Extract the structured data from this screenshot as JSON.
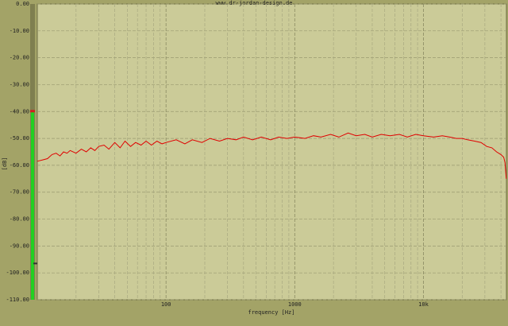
{
  "chart_data": {
    "type": "line",
    "title": "www.dr-jordan-design.de",
    "x_label": "frequency [Hz]",
    "y_label": "[dB]",
    "log_x": true,
    "grid": true,
    "xlim": [
      10,
      44100
    ],
    "ylim": [
      -110,
      0
    ],
    "xticks": [
      100,
      1000,
      {
        "value": 10000,
        "label": "10k"
      }
    ],
    "x_minor_grid": [
      20,
      30,
      40,
      50,
      60,
      70,
      80,
      90,
      200,
      300,
      400,
      500,
      600,
      700,
      800,
      900,
      2000,
      3000,
      4000,
      5000,
      6000,
      7000,
      8000,
      9000,
      20000,
      30000,
      40000
    ],
    "yticks": [
      {
        "value": 0,
        "label": "0.00"
      },
      {
        "value": -10,
        "label": "-10.00"
      },
      {
        "value": -20,
        "label": "-20.00"
      },
      {
        "value": -30,
        "label": "-30.00"
      },
      {
        "value": -40,
        "label": "-40.00"
      },
      {
        "value": -50,
        "label": "-50.00"
      },
      {
        "value": -60,
        "label": "-60.00"
      },
      {
        "value": -70,
        "label": "-70.00"
      },
      {
        "value": -80,
        "label": "-80.00"
      },
      {
        "value": -90,
        "label": "-90.00"
      },
      {
        "value": -100,
        "label": "-100.00"
      },
      {
        "value": -110,
        "label": "-110.00"
      }
    ],
    "level_meter": {
      "value": -40,
      "peak": -96.5,
      "color": "#22d022"
    },
    "x": [
      10,
      11,
      12,
      13,
      14,
      15,
      16,
      17,
      18,
      20,
      22,
      24,
      26,
      28,
      30,
      33,
      36,
      40,
      44,
      48,
      53,
      58,
      64,
      70,
      77,
      85,
      93,
      100,
      120,
      140,
      160,
      190,
      220,
      260,
      300,
      350,
      400,
      470,
      550,
      650,
      750,
      870,
      1000,
      1200,
      1400,
      1600,
      1900,
      2200,
      2600,
      3000,
      3500,
      4000,
      4700,
      5500,
      6500,
      7500,
      8700,
      10000,
      12000,
      14000,
      16000,
      18000,
      20000,
      22000,
      25000,
      28000,
      31000,
      34000,
      37000,
      40000,
      42000,
      43000,
      44000
    ],
    "series": [
      {
        "color": "#e00000",
        "values": [
          -58.5,
          -58,
          -57.5,
          -56,
          -55.5,
          -56.5,
          -55,
          -55.5,
          -54.5,
          -55.5,
          -54,
          -55,
          -53.5,
          -54.5,
          -53,
          -52.5,
          -54,
          -51.5,
          -53.5,
          -51,
          -53,
          -51.5,
          -52.5,
          -51,
          -52.5,
          -51,
          -52,
          -51.5,
          -50.5,
          -52,
          -50.5,
          -51.5,
          -50,
          -51,
          -50,
          -50.5,
          -49.5,
          -50.5,
          -49.5,
          -50.5,
          -49.5,
          -50,
          -49.5,
          -50,
          -49,
          -49.5,
          -48.5,
          -49.5,
          -48,
          -49,
          -48.5,
          -49.5,
          -48.5,
          -49,
          -48.5,
          -49.5,
          -48.5,
          -49,
          -49.5,
          -49,
          -49.5,
          -50,
          -50,
          -50.5,
          -51,
          -51.5,
          -53,
          -53.5,
          -55,
          -56,
          -57,
          -59,
          -65
        ]
      }
    ]
  }
}
